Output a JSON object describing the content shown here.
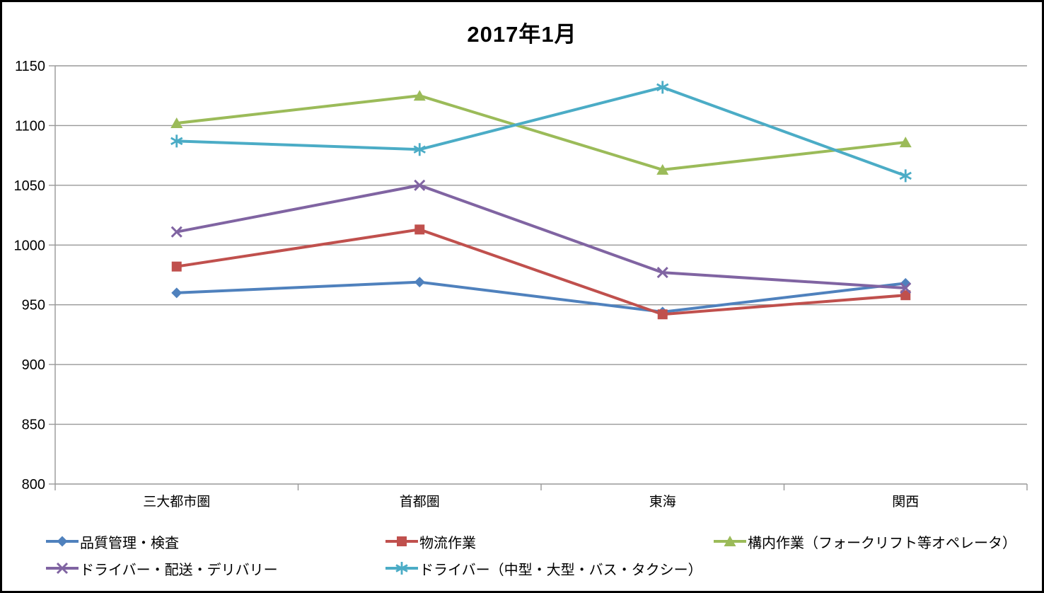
{
  "window": {
    "background": "#FFFFFF",
    "border_color": "#000000"
  },
  "chart_data": {
    "type": "line",
    "title": "2017年1月",
    "categories": [
      "三大都市圏",
      "首都圏",
      "東海",
      "関西"
    ],
    "series": [
      {
        "name": "品質管理・検査",
        "marker": "diamond",
        "color": "#4F81BD",
        "values": [
          960,
          969,
          944,
          968
        ]
      },
      {
        "name": "物流作業",
        "marker": "square",
        "color": "#C0504D",
        "values": [
          982,
          1013,
          942,
          958
        ]
      },
      {
        "name": "構内作業（フォークリフト等オペレータ）",
        "marker": "triangle",
        "color": "#9BBB59",
        "values": [
          1102,
          1125,
          1063,
          1086
        ]
      },
      {
        "name": "ドライバー・配送・デリバリー",
        "marker": "x",
        "color": "#8064A2",
        "values": [
          1011,
          1050,
          977,
          964
        ]
      },
      {
        "name": "ドライバー（中型・大型・バス・タクシー）",
        "marker": "asterisk",
        "color": "#4BACC6",
        "values": [
          1087,
          1080,
          1132,
          1058
        ]
      }
    ],
    "xlabel": "",
    "ylabel": "",
    "ylim": [
      800,
      1150
    ],
    "ytick_step": 50,
    "yticks": [
      800,
      850,
      900,
      950,
      1000,
      1050,
      1100,
      1150
    ],
    "grid": true,
    "legend_position": "bottom",
    "grid_color": "#989898",
    "axis_color": "#989898",
    "text_color": "#000000",
    "line_width": 4
  }
}
